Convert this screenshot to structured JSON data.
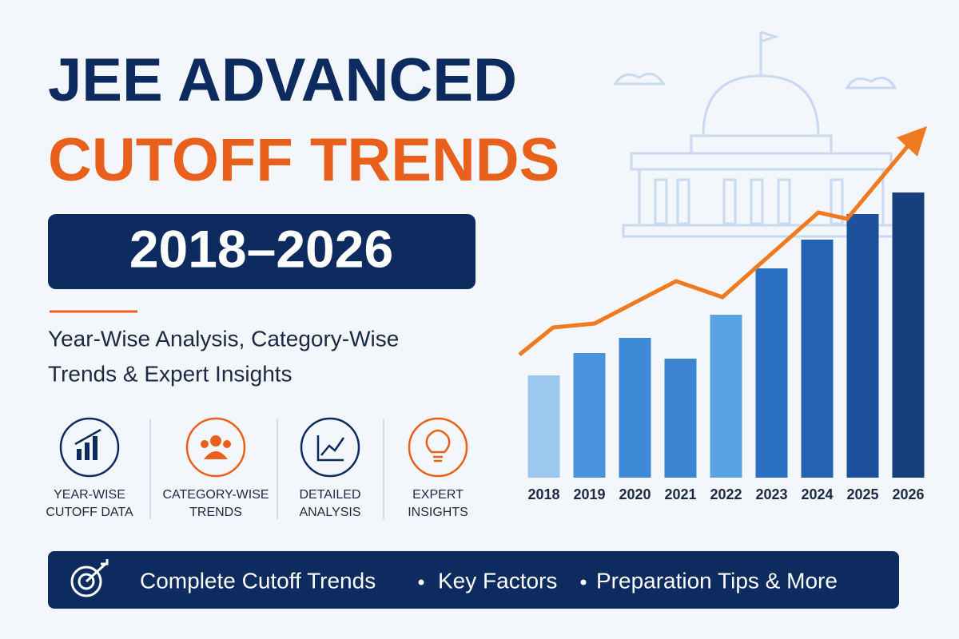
{
  "header": {
    "title_line1": "JEE ADVANCED",
    "title_line2": "CUTOFF TRENDS",
    "years": "2018–2026",
    "subtitle": [
      "Year-Wise Analysis, Category-Wise",
      "Trends & Expert Insights"
    ]
  },
  "features": [
    {
      "lines": [
        "YEAR-WISE",
        "CUTOFF DATA"
      ]
    },
    {
      "lines": [
        "CATEGORY-WISE",
        "TRENDS"
      ]
    },
    {
      "lines": [
        "DETAILED",
        "ANALYSIS"
      ]
    },
    {
      "lines": [
        "EXPERT",
        "INSIGHTS"
      ]
    }
  ],
  "footer": {
    "items": [
      "Complete Cutoff Trends",
      "Key Factors",
      "Preparation Tips & More"
    ]
  },
  "chart_data": {
    "type": "bar",
    "categories": [
      "2018",
      "2019",
      "2020",
      "2021",
      "2022",
      "2023",
      "2024",
      "2025",
      "2026"
    ],
    "values": [
      128,
      156,
      175,
      149,
      204,
      262,
      298,
      330,
      357
    ],
    "colors": [
      "#9cc8ef",
      "#4a92dc",
      "#3f8ad6",
      "#3a84d2",
      "#5aa2e2",
      "#2a6fc2",
      "#2463b4",
      "#1d519c",
      "#163f7e"
    ],
    "ylim": [
      0,
      400
    ]
  }
}
